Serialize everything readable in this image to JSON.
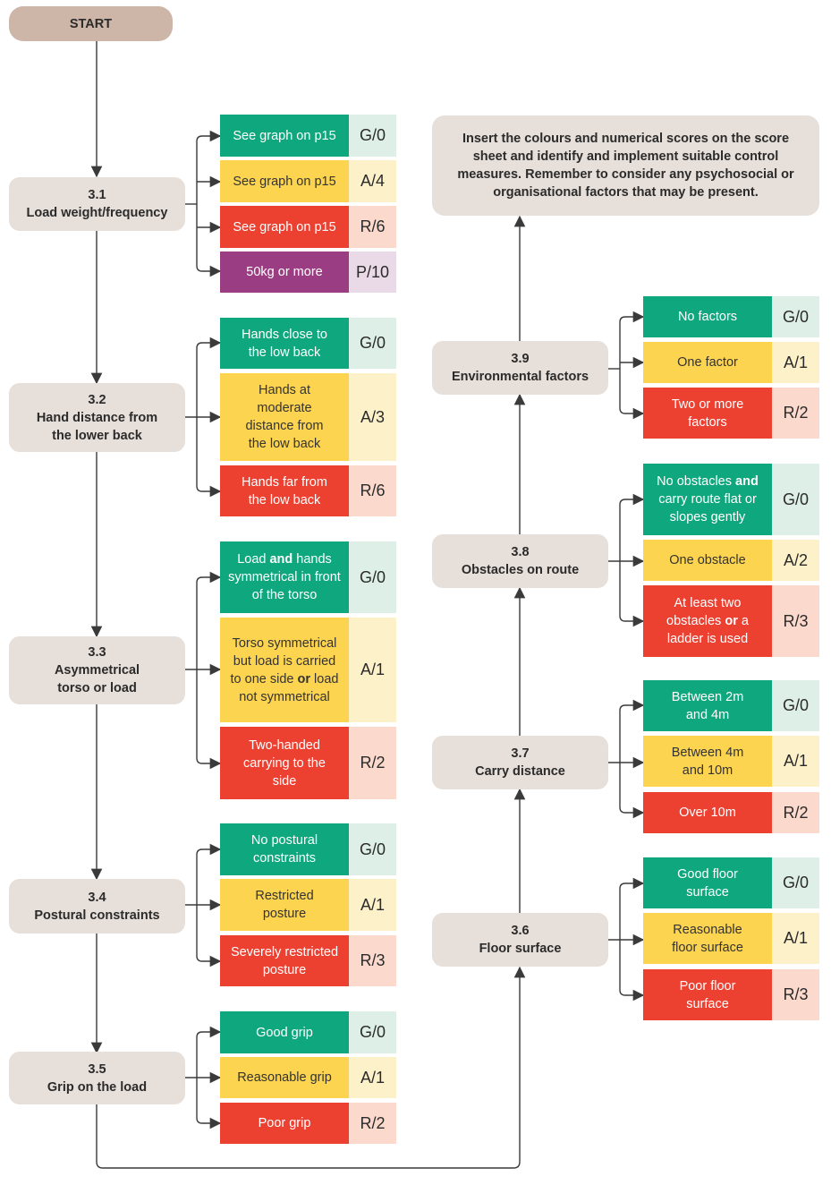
{
  "start": "START",
  "note": "Insert the colours and numerical scores on the score sheet and identify and implement suitable control measures. Remember to consider any psychosocial or organisational factors that may be present.",
  "steps": [
    {
      "num": "3.1",
      "label": "Load weight/frequency",
      "options": [
        {
          "text": "See graph on p15",
          "score": "G/0"
        },
        {
          "text": "See graph on p15",
          "score": "A/4"
        },
        {
          "text": "See graph on p15",
          "score": "R/6"
        },
        {
          "text": "50kg or more",
          "score": "P/10"
        }
      ]
    },
    {
      "num": "3.2",
      "label": "Hand distance from the lower back",
      "options": [
        {
          "text": "Hands close to the low back",
          "score": "G/0"
        },
        {
          "text": "Hands at moderate distance from the low back",
          "score": "A/3"
        },
        {
          "text": "Hands far from the low back",
          "score": "R/6"
        }
      ]
    },
    {
      "num": "3.3",
      "label": "Asymmetrical torso or load",
      "options": [
        {
          "text_a": "Load ",
          "text_b": "and",
          "text_c": " hands symmetrical in front of the torso",
          "score": "G/0"
        },
        {
          "text_a": "Torso symmetrical but load is carried to one side ",
          "text_b": "or",
          "text_c": " load not symmetrical",
          "score": "A/1"
        },
        {
          "text": "Two-handed carrying to the side",
          "score": "R/2"
        }
      ]
    },
    {
      "num": "3.4",
      "label": "Postural constraints",
      "options": [
        {
          "text": "No postural constraints",
          "score": "G/0"
        },
        {
          "text": "Restricted posture",
          "score": "A/1"
        },
        {
          "text": "Severely restricted posture",
          "score": "R/3"
        }
      ]
    },
    {
      "num": "3.5",
      "label": "Grip on the load",
      "options": [
        {
          "text": "Good grip",
          "score": "G/0"
        },
        {
          "text": "Reasonable grip",
          "score": "A/1"
        },
        {
          "text": "Poor grip",
          "score": "R/2"
        }
      ]
    },
    {
      "num": "3.6",
      "label": "Floor surface",
      "options": [
        {
          "text": "Good floor surface",
          "score": "G/0"
        },
        {
          "text": "Reasonable floor surface",
          "score": "A/1"
        },
        {
          "text": "Poor floor surface",
          "score": "R/3"
        }
      ]
    },
    {
      "num": "3.7",
      "label": "Carry distance",
      "options": [
        {
          "text": "Between 2m and 4m",
          "score": "G/0"
        },
        {
          "text": "Between 4m and 10m",
          "score": "A/1"
        },
        {
          "text": "Over 10m",
          "score": "R/2"
        }
      ]
    },
    {
      "num": "3.8",
      "label": "Obstacles on route",
      "options": [
        {
          "text_a": "No obstacles ",
          "text_b": "and",
          "text_c": " carry route flat or slopes gently",
          "score": "G/0"
        },
        {
          "text": "One obstacle",
          "score": "A/2"
        },
        {
          "text_a": "At least two obstacles ",
          "text_b": "or",
          "text_c": " a ladder is used",
          "score": "R/3"
        }
      ]
    },
    {
      "num": "3.9",
      "label": "Environmental factors",
      "options": [
        {
          "text": "No factors",
          "score": "G/0"
        },
        {
          "text": "One factor",
          "score": "A/1"
        },
        {
          "text": "Two or more factors",
          "score": "R/2"
        }
      ]
    }
  ],
  "colors": {
    "green": "#0fa77d",
    "amber": "#fdd44f",
    "red": "#ec4031",
    "purple": "#9b3d82",
    "node": "#e7dfd9",
    "start": "#cdb5a7"
  }
}
